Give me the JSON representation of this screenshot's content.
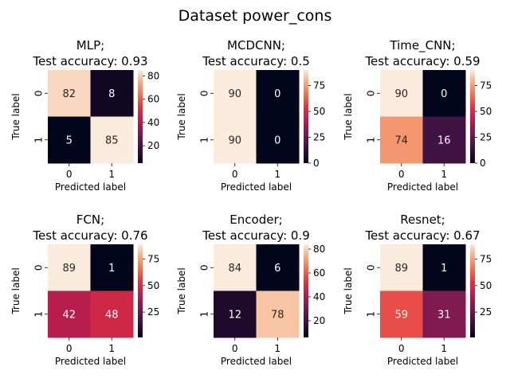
{
  "figure": {
    "title": "Dataset power_cons"
  },
  "chart_data": [
    {
      "type": "heatmap",
      "model": "MLP",
      "title_line1": "MLP;",
      "title_line2": "Test accuracy: 0.93",
      "xlabel": "Predicted label",
      "ylabel": "True label",
      "x_ticks": [
        "0",
        "1"
      ],
      "y_ticks": [
        "0",
        "1"
      ],
      "matrix": [
        [
          82,
          8
        ],
        [
          5,
          85
        ]
      ],
      "colorbar": {
        "vmin": 5,
        "vmax": 85,
        "ticks": [
          20,
          40,
          60,
          80
        ]
      }
    },
    {
      "type": "heatmap",
      "model": "MCDCNN",
      "title_line1": "MCDCNN;",
      "title_line2": "Test accuracy: 0.5",
      "xlabel": "Predicted label",
      "ylabel": "True label",
      "x_ticks": [
        "0",
        "1"
      ],
      "y_ticks": [
        "0",
        "1"
      ],
      "matrix": [
        [
          90,
          0
        ],
        [
          90,
          0
        ]
      ],
      "colorbar": {
        "vmin": 0,
        "vmax": 90,
        "ticks": [
          0,
          25,
          50,
          75
        ]
      }
    },
    {
      "type": "heatmap",
      "model": "Time_CNN",
      "title_line1": "Time_CNN;",
      "title_line2": "Test accuracy: 0.59",
      "xlabel": "Predicted label",
      "ylabel": "True label",
      "x_ticks": [
        "0",
        "1"
      ],
      "y_ticks": [
        "0",
        "1"
      ],
      "matrix": [
        [
          90,
          0
        ],
        [
          74,
          16
        ]
      ],
      "colorbar": {
        "vmin": 0,
        "vmax": 90,
        "ticks": [
          0,
          25,
          50,
          75
        ]
      }
    },
    {
      "type": "heatmap",
      "model": "FCN",
      "title_line1": "FCN;",
      "title_line2": "Test accuracy: 0.76",
      "xlabel": "Predicted label",
      "ylabel": "True label",
      "x_ticks": [
        "0",
        "1"
      ],
      "y_ticks": [
        "0",
        "1"
      ],
      "matrix": [
        [
          89,
          1
        ],
        [
          42,
          48
        ]
      ],
      "colorbar": {
        "vmin": 1,
        "vmax": 89,
        "ticks": [
          25,
          50,
          75
        ]
      }
    },
    {
      "type": "heatmap",
      "model": "Encoder",
      "title_line1": "Encoder;",
      "title_line2": "Test accuracy: 0.9",
      "xlabel": "Predicted label",
      "ylabel": "True label",
      "x_ticks": [
        "0",
        "1"
      ],
      "y_ticks": [
        "0",
        "1"
      ],
      "matrix": [
        [
          84,
          6
        ],
        [
          12,
          78
        ]
      ],
      "colorbar": {
        "vmin": 6,
        "vmax": 84,
        "ticks": [
          20,
          40,
          60,
          80
        ]
      }
    },
    {
      "type": "heatmap",
      "model": "Resnet",
      "title_line1": "Resnet;",
      "title_line2": "Test accuracy: 0.67",
      "xlabel": "Predicted label",
      "ylabel": "True label",
      "x_ticks": [
        "0",
        "1"
      ],
      "y_ticks": [
        "0",
        "1"
      ],
      "matrix": [
        [
          89,
          1
        ],
        [
          59,
          31
        ]
      ],
      "colorbar": {
        "vmin": 1,
        "vmax": 89,
        "ticks": [
          25,
          50,
          75
        ]
      }
    }
  ]
}
